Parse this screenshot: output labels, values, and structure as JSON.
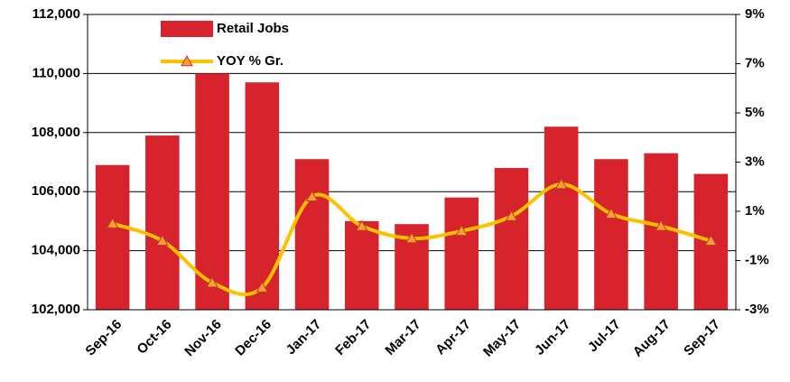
{
  "chart_data": {
    "type": "bar_line",
    "categories": [
      "Sep-16",
      "Oct-16",
      "Nov-16",
      "Dec-16",
      "Jan-17",
      "Feb-17",
      "Mar-17",
      "Apr-17",
      "May-17",
      "Jun-17",
      "Jul-17",
      "Aug-17",
      "Sep-17"
    ],
    "series": [
      {
        "name": "Retail Jobs",
        "type": "bar",
        "color": "#d7242c",
        "values": [
          106900,
          107900,
          110000,
          109700,
          107100,
          105000,
          104900,
          105800,
          106800,
          108200,
          107100,
          107300,
          106600
        ]
      },
      {
        "name": "YOY % Gr.",
        "type": "line",
        "axis": "y2",
        "color": "#ffc000",
        "marker_color": "#f5a030",
        "values": [
          0.5,
          -0.2,
          -1.9,
          -2.1,
          1.6,
          0.4,
          -0.1,
          0.2,
          0.8,
          2.1,
          0.9,
          0.4,
          -0.2
        ]
      }
    ],
    "ylim": [
      102000,
      112000
    ],
    "yticks": [
      {
        "value": 102000,
        "label": "102,000"
      },
      {
        "value": 104000,
        "label": "104,000"
      },
      {
        "value": 106000,
        "label": "106,000"
      },
      {
        "value": 108000,
        "label": "108,000"
      },
      {
        "value": 110000,
        "label": "110,000"
      },
      {
        "value": 112000,
        "label": "112,000"
      }
    ],
    "y2lim": [
      -3,
      9
    ],
    "y2ticks": [
      {
        "value": -3,
        "label": "-3%"
      },
      {
        "value": -1,
        "label": "-1%"
      },
      {
        "value": 1,
        "label": "1%"
      },
      {
        "value": 3,
        "label": "3%"
      },
      {
        "value": 5,
        "label": "5%"
      },
      {
        "value": 7,
        "label": "7%"
      },
      {
        "value": 9,
        "label": "9%"
      }
    ],
    "grid": true,
    "legend": "upper-left"
  }
}
